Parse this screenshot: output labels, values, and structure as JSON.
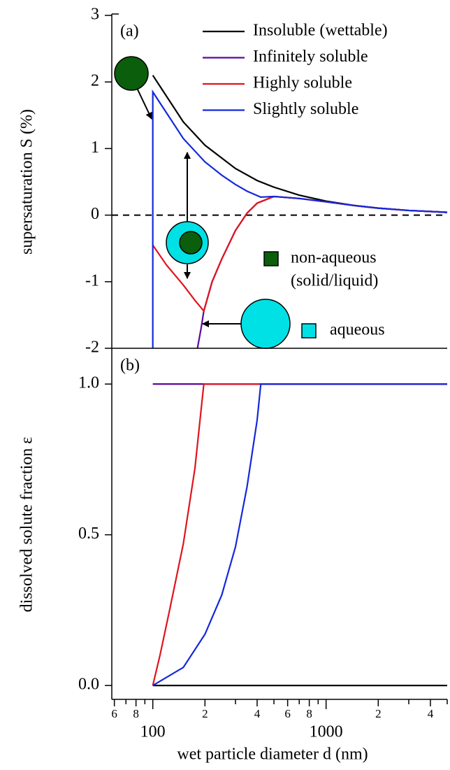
{
  "chart_data": [
    {
      "type": "line",
      "xscale": "log",
      "xlim": [
        58,
        5000
      ],
      "ylim": [
        -2,
        3
      ],
      "yticks": [
        3,
        2,
        1,
        0,
        -1,
        -2
      ],
      "ylabel": "supersaturation S (%)",
      "annotation": "(a)",
      "hline": 0,
      "series": [
        {
          "name": "Insoluble (wettable)",
          "color": "#000000",
          "x": [
            100,
            150,
            200,
            300,
            400,
            500,
            700,
            1000,
            1500,
            2000,
            3000,
            5000
          ],
          "values": [
            2.1,
            1.4,
            1.05,
            0.7,
            0.52,
            0.42,
            0.3,
            0.21,
            0.14,
            0.105,
            0.07,
            0.042
          ]
        },
        {
          "name": "Infinitely soluble",
          "color": "#5a0aa0",
          "x": [
            181,
            190,
            197,
            220,
            250,
            300,
            350,
            400,
            500,
            700,
            1000,
            1500,
            2000,
            3000,
            5000
          ],
          "values": [
            -2,
            -1.7,
            -1.44,
            -1.0,
            -0.66,
            -0.23,
            0.03,
            0.18,
            0.28,
            0.25,
            0.2,
            0.14,
            0.105,
            0.07,
            0.042
          ]
        },
        {
          "name": "Highly soluble",
          "color": "#e0141e",
          "x": [
            100,
            120,
            150,
            175,
            197,
            220,
            250,
            300,
            350,
            400,
            500,
            700,
            1000,
            1500,
            2000,
            3000,
            5000
          ],
          "values": [
            -0.45,
            -0.75,
            -1.05,
            -1.28,
            -1.44,
            -1.0,
            -0.66,
            -0.23,
            0.03,
            0.18,
            0.28,
            0.25,
            0.2,
            0.14,
            0.105,
            0.07,
            0.042
          ]
        },
        {
          "name": "Slightly soluble",
          "color": "#1428dc",
          "x": [
            100,
            100,
            150,
            200,
            250,
            300,
            350,
            420,
            500,
            700,
            1000,
            1500,
            2000,
            3000,
            5000
          ],
          "values": [
            -2,
            1.85,
            1.15,
            0.8,
            0.6,
            0.46,
            0.36,
            0.27,
            0.28,
            0.25,
            0.2,
            0.14,
            0.105,
            0.07,
            0.042
          ]
        }
      ],
      "marker_legend": [
        {
          "label": [
            "non-aqueous",
            "(solid/liquid)"
          ],
          "color": "#0b5e0b"
        },
        {
          "label": [
            "aqueous"
          ],
          "color": "#00e1e6"
        }
      ]
    },
    {
      "type": "line",
      "xscale": "log",
      "xlim": [
        58,
        5000
      ],
      "ylim": [
        -0.046,
        1.114
      ],
      "yticks": [
        {
          "value": 1,
          "label": "1.0"
        },
        {
          "value": 0.5,
          "label": "0.5"
        },
        {
          "value": 0,
          "label": "0.0"
        }
      ],
      "xticks": [
        {
          "value": 60,
          "label": "6"
        },
        {
          "value": 80,
          "label": "8"
        },
        100,
        {
          "value": 200,
          "label": "2"
        },
        {
          "value": 400,
          "label": "4"
        },
        {
          "value": 600,
          "label": "6"
        },
        {
          "value": 800,
          "label": "8"
        },
        1000,
        {
          "value": 2000,
          "label": "2"
        },
        {
          "value": 4000,
          "label": "4"
        }
      ],
      "xminorticks": [
        70,
        90,
        300,
        500,
        700,
        900,
        3000,
        5000
      ],
      "ylabel": "dissolved solute fraction ε",
      "xlabel": "wet particle diameter d (nm)",
      "annotation": "(b)",
      "series": [
        {
          "color": "#000000",
          "x": [
            100,
            5000
          ],
          "values": [
            0,
            0
          ]
        },
        {
          "color": "#5a0aa0",
          "x": [
            100,
            5000
          ],
          "values": [
            1,
            1
          ]
        },
        {
          "color": "#e0141e",
          "x": [
            100,
            110,
            125,
            150,
            175,
            197,
            5000
          ],
          "values": [
            0,
            0.1,
            0.25,
            0.47,
            0.72,
            1,
            1
          ]
        },
        {
          "color": "#1428dc",
          "x": [
            100,
            150,
            200,
            250,
            300,
            350,
            400,
            420,
            5000
          ],
          "values": [
            0,
            0.06,
            0.17,
            0.3,
            0.46,
            0.66,
            0.88,
            1,
            1
          ]
        }
      ]
    }
  ]
}
